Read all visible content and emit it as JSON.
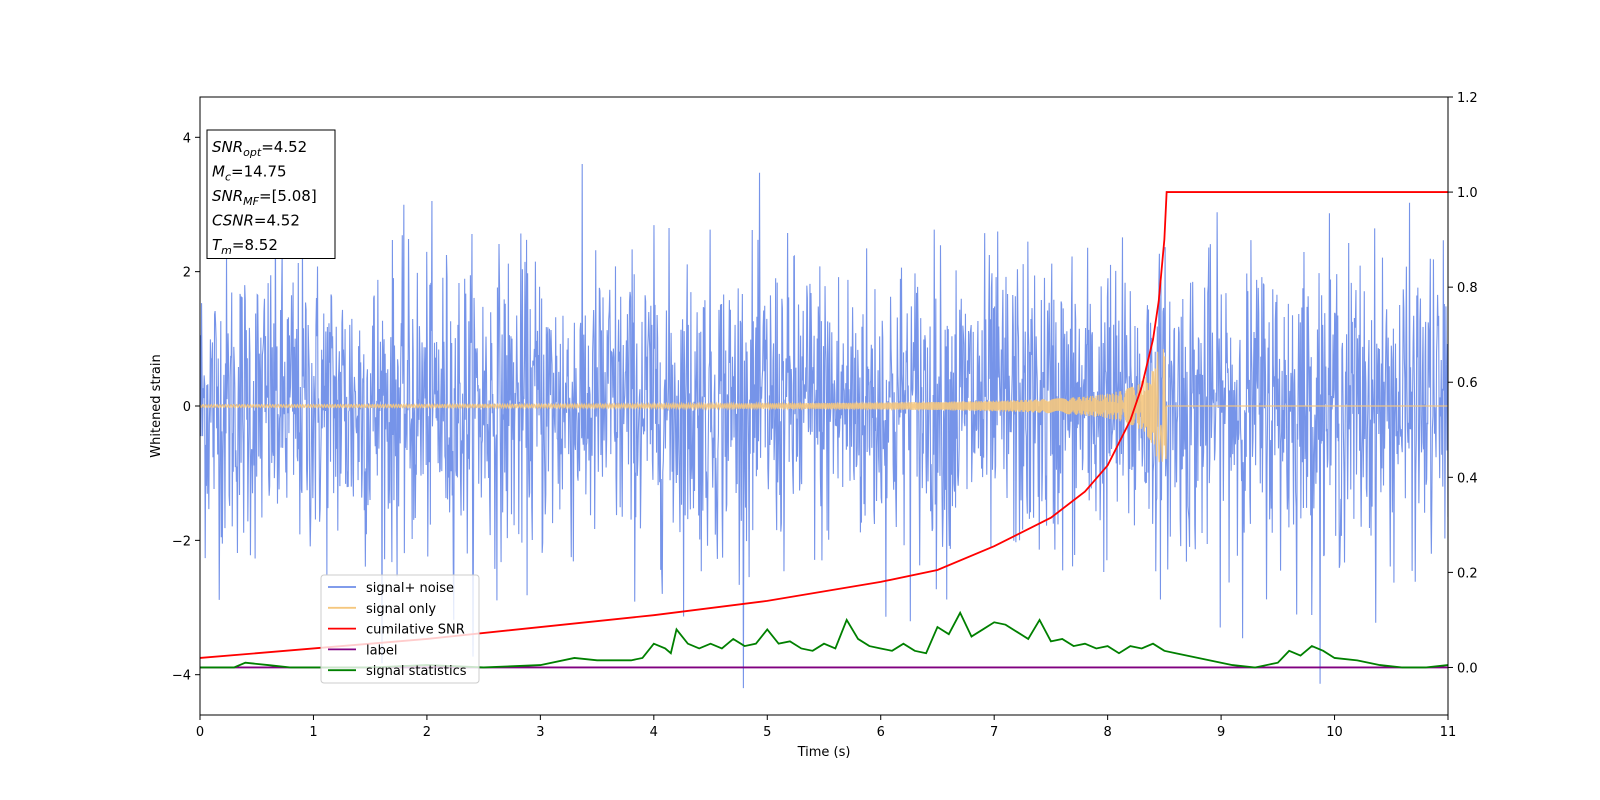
{
  "chart_data": {
    "type": "line",
    "xlabel": "Time (s)",
    "ylabel": "Whitened strain",
    "xlim": [
      0,
      11
    ],
    "ylim_left": [
      -4.6,
      4.6
    ],
    "ylim_right": [
      -0.1,
      1.2
    ],
    "x_ticks": [
      0,
      1,
      2,
      3,
      4,
      5,
      6,
      7,
      8,
      9,
      10,
      11
    ],
    "y_left_ticks": [
      -4,
      -2,
      0,
      2,
      4
    ],
    "y_right_ticks": [
      0.0,
      0.2,
      0.4,
      0.6,
      0.8,
      1.0,
      1.2
    ],
    "y_left_tick_labels": [
      "−4",
      "−2",
      "0",
      "2",
      "4"
    ],
    "y_right_tick_labels": [
      "0.0",
      "0.2",
      "0.4",
      "0.6",
      "0.8",
      "1.0",
      "1.2"
    ],
    "x_tick_labels": [
      "0",
      "1",
      "2",
      "3",
      "4",
      "5",
      "6",
      "7",
      "8",
      "9",
      "10",
      "11"
    ],
    "grid": false,
    "legend_position": "lower-left",
    "merger_time": 8.52,
    "series": [
      {
        "name": "signal+ noise",
        "color": "#6f8ee8",
        "axis": "left",
        "kind": "noise",
        "noise_std": 1.1,
        "y_range": [
          -4.2,
          4.15
        ]
      },
      {
        "name": "signal only",
        "color": "#f5c77e",
        "axis": "left",
        "kind": "chirp",
        "start_amplitude": 0.02,
        "peak_amplitude": 0.85,
        "peak_time": 8.52
      },
      {
        "name": "cumilative SNR",
        "color": "#ff0000",
        "axis": "right",
        "x": [
          0,
          1,
          2,
          3,
          4,
          5,
          6,
          6.5,
          7,
          7.5,
          7.8,
          8.0,
          8.2,
          8.3,
          8.4,
          8.45,
          8.5,
          8.52,
          9,
          10,
          11
        ],
        "y": [
          0.02,
          0.04,
          0.06,
          0.085,
          0.11,
          0.14,
          0.18,
          0.205,
          0.255,
          0.315,
          0.37,
          0.425,
          0.52,
          0.59,
          0.69,
          0.77,
          0.9,
          1.0,
          1.0,
          1.0,
          1.0
        ]
      },
      {
        "name": "label",
        "color": "#800080",
        "axis": "right",
        "x": [
          0,
          11
        ],
        "y": [
          0.0,
          0.0
        ]
      },
      {
        "name": "signal statistics",
        "color": "#008000",
        "axis": "right",
        "x": [
          0,
          0.3,
          0.4,
          0.6,
          0.8,
          1.0,
          1.5,
          2.0,
          2.5,
          3.0,
          3.3,
          3.5,
          3.8,
          3.9,
          4.0,
          4.1,
          4.15,
          4.2,
          4.3,
          4.4,
          4.5,
          4.6,
          4.7,
          4.8,
          4.9,
          5.0,
          5.1,
          5.2,
          5.3,
          5.4,
          5.5,
          5.6,
          5.7,
          5.8,
          5.9,
          6.0,
          6.1,
          6.2,
          6.3,
          6.4,
          6.5,
          6.6,
          6.7,
          6.8,
          6.9,
          7.0,
          7.1,
          7.2,
          7.3,
          7.4,
          7.5,
          7.6,
          7.7,
          7.8,
          7.9,
          8.0,
          8.1,
          8.2,
          8.3,
          8.4,
          8.5,
          8.6,
          8.7,
          8.8,
          8.9,
          9.0,
          9.1,
          9.3,
          9.5,
          9.6,
          9.7,
          9.8,
          9.9,
          10.0,
          10.2,
          10.4,
          10.6,
          10.8,
          11.0
        ],
        "y": [
          0.0,
          0.0,
          0.01,
          0.005,
          0.0,
          0.0,
          0.0,
          0.005,
          0.0,
          0.005,
          0.02,
          0.015,
          0.015,
          0.02,
          0.05,
          0.04,
          0.03,
          0.08,
          0.05,
          0.04,
          0.05,
          0.04,
          0.06,
          0.045,
          0.05,
          0.08,
          0.05,
          0.055,
          0.04,
          0.035,
          0.05,
          0.04,
          0.1,
          0.06,
          0.045,
          0.04,
          0.035,
          0.05,
          0.035,
          0.03,
          0.085,
          0.07,
          0.115,
          0.065,
          0.08,
          0.095,
          0.09,
          0.075,
          0.06,
          0.1,
          0.055,
          0.06,
          0.045,
          0.05,
          0.04,
          0.045,
          0.03,
          0.045,
          0.04,
          0.05,
          0.035,
          0.03,
          0.025,
          0.02,
          0.015,
          0.01,
          0.005,
          0.0,
          0.01,
          0.035,
          0.025,
          0.045,
          0.035,
          0.02,
          0.015,
          0.005,
          0.0,
          0.0,
          0.005
        ]
      }
    ],
    "annotation": {
      "lines": [
        {
          "label": "SNR",
          "sub": "opt",
          "value": "=4.52"
        },
        {
          "label": "M",
          "sub": "c",
          "value": "=14.75"
        },
        {
          "label": "SNR",
          "sub": "MF",
          "value": "=[5.08]"
        },
        {
          "label": "CSNR",
          "sub": "",
          "value": "=4.52"
        },
        {
          "label": "T",
          "sub": "m",
          "value": "=8.52"
        }
      ]
    }
  }
}
